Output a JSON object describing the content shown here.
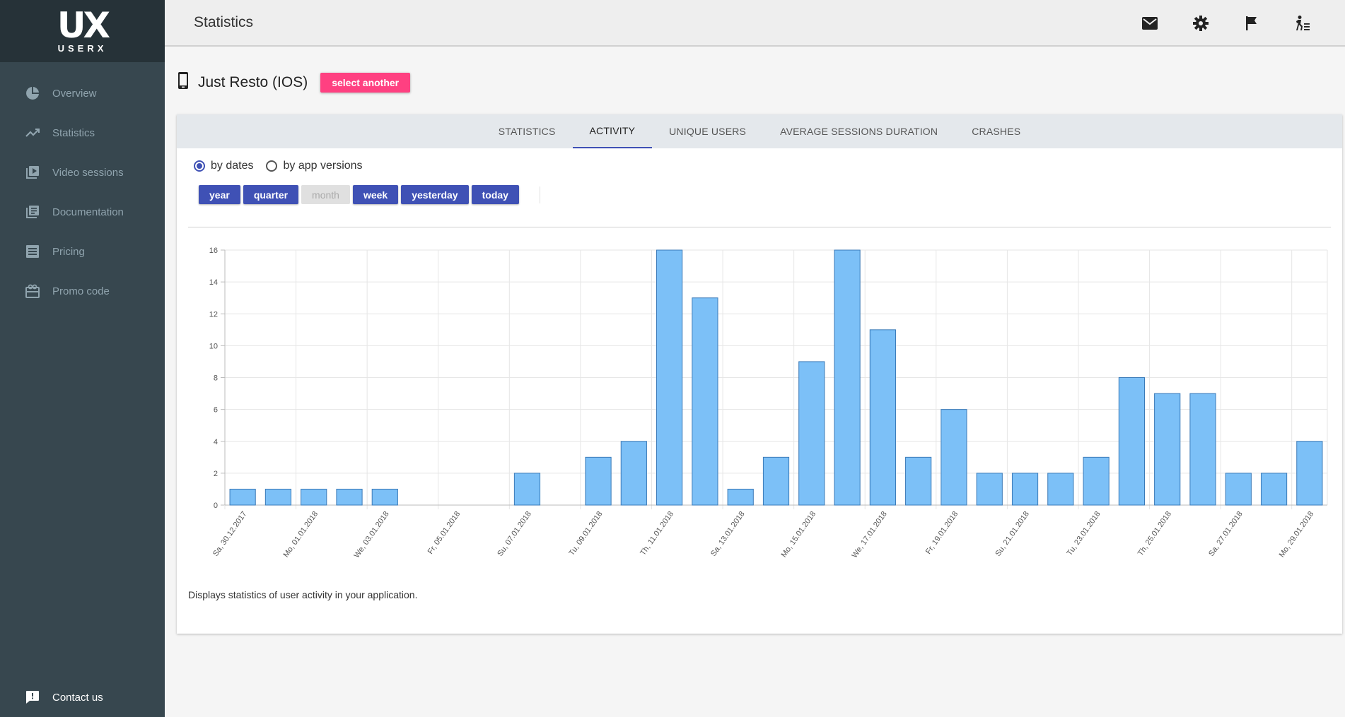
{
  "logo": {
    "mark": "UX",
    "text": "USERX"
  },
  "sidebar": {
    "items": [
      {
        "label": "Overview",
        "icon": "pie-chart-icon"
      },
      {
        "label": "Statistics",
        "icon": "trending-up-icon"
      },
      {
        "label": "Video sessions",
        "icon": "video-library-icon"
      },
      {
        "label": "Documentation",
        "icon": "library-books-icon"
      },
      {
        "label": "Pricing",
        "icon": "list-alt-icon"
      },
      {
        "label": "Promo code",
        "icon": "gift-card-icon"
      }
    ],
    "contact": "Contact us"
  },
  "header": {
    "title": "Statistics",
    "icons": [
      "mail-icon",
      "gear-icon",
      "flag-icon",
      "exit-run-icon"
    ]
  },
  "app": {
    "name": "Just Resto (IOS)",
    "select_label": "select another"
  },
  "tabs": [
    {
      "label": "STATISTICS",
      "active": false
    },
    {
      "label": "ACTIVITY",
      "active": true
    },
    {
      "label": "UNIQUE USERS",
      "active": false
    },
    {
      "label": "AVERAGE SESSIONS DURATION",
      "active": false
    },
    {
      "label": "CRASHES",
      "active": false
    }
  ],
  "radios": {
    "by_dates": "by dates",
    "by_versions": "by app versions",
    "selected": "by_dates"
  },
  "periods": [
    {
      "label": "year",
      "enabled": true
    },
    {
      "label": "quarter",
      "enabled": true
    },
    {
      "label": "month",
      "enabled": false
    },
    {
      "label": "week",
      "enabled": true
    },
    {
      "label": "yesterday",
      "enabled": true
    },
    {
      "label": "today",
      "enabled": true
    }
  ],
  "caption": "Displays statistics of user activity in your application.",
  "colors": {
    "accent": "#3f51b5",
    "pink": "#ff4081",
    "bar": "#7cc0f7",
    "bar_border": "#3a7ab8",
    "sidebar": "#37474f"
  },
  "chart_data": {
    "type": "bar",
    "title": "",
    "xlabel": "",
    "ylabel": "",
    "ylim": [
      0,
      16
    ],
    "yticks": [
      0,
      2,
      4,
      6,
      8,
      10,
      12,
      14,
      16
    ],
    "grid": true,
    "categories": [
      "Sa, 30.12.2017",
      "Su, 31.12.2017",
      "Mo, 01.01.2018",
      "Tu, 02.01.2018",
      "We, 03.01.2018",
      "Th, 04.01.2018",
      "Fr, 05.01.2018",
      "Sa, 06.01.2018",
      "Su, 07.01.2018",
      "Mo, 08.01.2018",
      "Tu, 09.01.2018",
      "We, 10.01.2018",
      "Th, 11.01.2018",
      "Fr, 12.01.2018",
      "Sa, 13.01.2018",
      "Su, 14.01.2018",
      "Mo, 15.01.2018",
      "Tu, 16.01.2018",
      "We, 17.01.2018",
      "Th, 18.01.2018",
      "Fr, 19.01.2018",
      "Sa, 20.01.2018",
      "Su, 21.01.2018",
      "Mo, 22.01.2018",
      "Tu, 23.01.2018",
      "We, 24.01.2018",
      "Th, 25.01.2018",
      "Fr, 26.01.2018",
      "Sa, 27.01.2018",
      "Su, 28.01.2018",
      "Mo, 29.01.2018"
    ],
    "tick_labels": [
      "Sa, 30.12.2017",
      "Mo, 01.01.2018",
      "We, 03.01.2018",
      "Fr, 05.01.2018",
      "Su, 07.01.2018",
      "Tu, 09.01.2018",
      "Th, 11.01.2018",
      "Sa, 13.01.2018",
      "Mo, 15.01.2018",
      "We, 17.01.2018",
      "Fr, 19.01.2018",
      "Su, 21.01.2018",
      "Tu, 23.01.2018",
      "Th, 25.01.2018",
      "Sa, 27.01.2018",
      "Mo, 29.01.2018"
    ],
    "values": [
      1,
      1,
      1,
      1,
      1,
      0,
      0,
      0,
      2,
      0,
      3,
      4,
      16,
      13,
      1,
      3,
      9,
      16,
      11,
      3,
      6,
      2,
      2,
      2,
      3,
      8,
      7,
      7,
      2,
      2,
      4
    ]
  }
}
